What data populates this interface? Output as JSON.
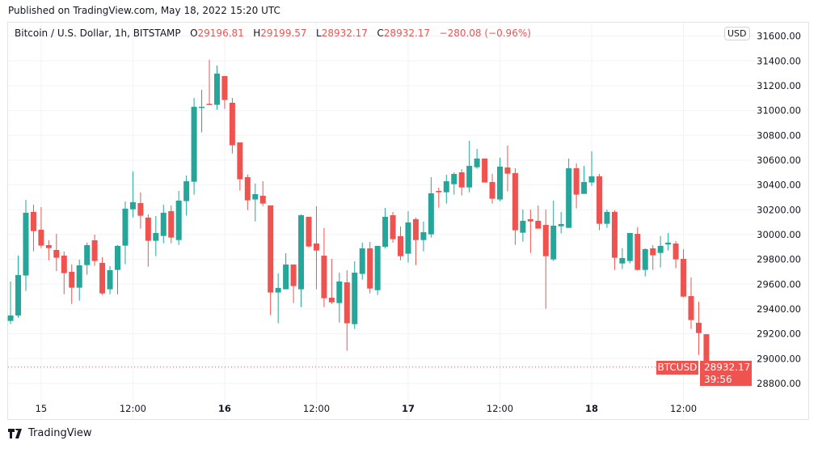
{
  "published": "Published on TradingView.com, May 18, 2022 15:20 UTC",
  "legend": {
    "symbol": "Bitcoin / U.S. Dollar, 1h, BITSTAMP",
    "o_label": "O",
    "o": "29196.81",
    "h_label": "H",
    "h": "29199.57",
    "l_label": "L",
    "l": "28932.17",
    "c_label": "C",
    "c": "28932.17",
    "change": "−280.08 (−0.96%)"
  },
  "currency_button": "USD",
  "last_price": {
    "symbol": "BTCUSD",
    "price": "28932.17",
    "countdown": "39:56"
  },
  "logo_text": "TradingView",
  "colors": {
    "up": "#26a69a",
    "down": "#ef5350",
    "grid": "#f0f3fa"
  },
  "chart_data": {
    "type": "candlestick",
    "interval": "1h",
    "ylim": [
      28700,
      31700
    ],
    "grid": true,
    "y_ticks": [
      "28800.00",
      "29000.00",
      "29200.00",
      "29400.00",
      "29600.00",
      "29800.00",
      "30000.00",
      "30200.00",
      "30400.00",
      "30600.00",
      "30800.00",
      "31000.00",
      "31200.00",
      "31400.00",
      "31600.00"
    ],
    "x_ticks": [
      {
        "label": "15",
        "time": "2022-05-15 00:00",
        "bold": false
      },
      {
        "label": "12:00",
        "time": "2022-05-15 12:00",
        "bold": false
      },
      {
        "label": "16",
        "time": "2022-05-16 00:00",
        "bold": true
      },
      {
        "label": "12:00",
        "time": "2022-05-16 12:00",
        "bold": false
      },
      {
        "label": "17",
        "time": "2022-05-17 00:00",
        "bold": true
      },
      {
        "label": "12:00",
        "time": "2022-05-17 12:00",
        "bold": false
      },
      {
        "label": "18",
        "time": "2022-05-18 00:00",
        "bold": true
      },
      {
        "label": "12:00",
        "time": "2022-05-18 12:00",
        "bold": false
      }
    ],
    "columns": [
      "time",
      "open",
      "high",
      "low",
      "close"
    ],
    "candles": [
      [
        "2022-05-14 20:00",
        29304,
        29622,
        29278,
        29348
      ],
      [
        "2022-05-14 21:00",
        29348,
        29830,
        29330,
        29674
      ],
      [
        "2022-05-14 22:00",
        29670,
        30280,
        29546,
        30176
      ],
      [
        "2022-05-14 23:00",
        30183,
        30241,
        29865,
        30028
      ],
      [
        "2022-05-15 00:00",
        30039,
        30222,
        29891,
        29911
      ],
      [
        "2022-05-15 01:00",
        29915,
        29954,
        29793,
        29891
      ],
      [
        "2022-05-15 02:00",
        29876,
        30006,
        29706,
        29813
      ],
      [
        "2022-05-15 03:00",
        29830,
        29863,
        29519,
        29689
      ],
      [
        "2022-05-15 04:00",
        29700,
        29759,
        29441,
        29572
      ],
      [
        "2022-05-15 05:00",
        29572,
        29798,
        29467,
        29752
      ],
      [
        "2022-05-15 06:00",
        29754,
        29935,
        29676,
        29915
      ],
      [
        "2022-05-15 07:00",
        29954,
        30000,
        29748,
        29787
      ],
      [
        "2022-05-15 08:00",
        29772,
        29817,
        29513,
        29526
      ],
      [
        "2022-05-15 09:00",
        29559,
        29746,
        29519,
        29713
      ],
      [
        "2022-05-15 10:00",
        29715,
        29915,
        29519,
        29909
      ],
      [
        "2022-05-15 11:00",
        29911,
        30267,
        29761,
        30209
      ],
      [
        "2022-05-15 12:00",
        30204,
        30509,
        30139,
        30261
      ],
      [
        "2022-05-15 13:00",
        30254,
        30339,
        30048,
        30152
      ],
      [
        "2022-05-15 14:00",
        30137,
        30163,
        29741,
        29950
      ],
      [
        "2022-05-15 15:00",
        29950,
        30150,
        29826,
        30013
      ],
      [
        "2022-05-15 16:00",
        29989,
        30241,
        29930,
        30176
      ],
      [
        "2022-05-15 17:00",
        30189,
        30235,
        29930,
        29976
      ],
      [
        "2022-05-15 18:00",
        29956,
        30352,
        29917,
        30274
      ],
      [
        "2022-05-15 19:00",
        30270,
        30476,
        30152,
        30430
      ],
      [
        "2022-05-15 20:00",
        30426,
        31102,
        30322,
        31030
      ],
      [
        "2022-05-15 21:00",
        31022,
        31167,
        30824,
        31030
      ],
      [
        "2022-05-15 22:00",
        31054,
        31409,
        31046,
        31046
      ],
      [
        "2022-05-15 23:00",
        31046,
        31363,
        31007,
        31298
      ],
      [
        "2022-05-16 00:00",
        31278,
        31278,
        31013,
        31085
      ],
      [
        "2022-05-16 01:00",
        31063,
        31102,
        30654,
        30720
      ],
      [
        "2022-05-16 02:00",
        30743,
        30743,
        30354,
        30446
      ],
      [
        "2022-05-16 03:00",
        30463,
        30485,
        30198,
        30276
      ],
      [
        "2022-05-16 04:00",
        30283,
        30411,
        30106,
        30326
      ],
      [
        "2022-05-16 05:00",
        30313,
        30430,
        30230,
        30250
      ],
      [
        "2022-05-16 06:00",
        30235,
        30235,
        29350,
        29533
      ],
      [
        "2022-05-16 07:00",
        29533,
        29687,
        29285,
        29570
      ],
      [
        "2022-05-16 08:00",
        29559,
        29850,
        29559,
        29759
      ],
      [
        "2022-05-16 09:00",
        29759,
        29759,
        29448,
        29585
      ],
      [
        "2022-05-16 10:00",
        29559,
        30163,
        29415,
        30156
      ],
      [
        "2022-05-16 11:00",
        30143,
        30143,
        29898,
        29904
      ],
      [
        "2022-05-16 12:00",
        29928,
        30228,
        29559,
        29872
      ],
      [
        "2022-05-16 13:00",
        29830,
        30052,
        29415,
        29487
      ],
      [
        "2022-05-16 14:00",
        29491,
        29804,
        29441,
        29454
      ],
      [
        "2022-05-16 15:00",
        29448,
        29693,
        29291,
        29622
      ],
      [
        "2022-05-16 16:00",
        29615,
        29713,
        29063,
        29285
      ],
      [
        "2022-05-16 17:00",
        29278,
        29785,
        29239,
        29693
      ],
      [
        "2022-05-16 18:00",
        29683,
        29935,
        29637,
        29889
      ],
      [
        "2022-05-16 19:00",
        29889,
        29941,
        29526,
        29565
      ],
      [
        "2022-05-16 20:00",
        29552,
        29909,
        29513,
        29909
      ],
      [
        "2022-05-16 21:00",
        29902,
        30215,
        29889,
        30143
      ],
      [
        "2022-05-16 22:00",
        30156,
        30183,
        29935,
        29963
      ],
      [
        "2022-05-16 23:00",
        29987,
        30065,
        29793,
        29826
      ],
      [
        "2022-05-17 00:00",
        29846,
        30189,
        29774,
        30098
      ],
      [
        "2022-05-17 01:00",
        30124,
        30137,
        29754,
        29956
      ],
      [
        "2022-05-17 02:00",
        29956,
        30104,
        29865,
        30019
      ],
      [
        "2022-05-17 03:00",
        30002,
        30463,
        29976,
        30333
      ],
      [
        "2022-05-17 04:00",
        30352,
        30378,
        30217,
        30341
      ],
      [
        "2022-05-17 05:00",
        30341,
        30483,
        30250,
        30430
      ],
      [
        "2022-05-17 06:00",
        30406,
        30502,
        30322,
        30489
      ],
      [
        "2022-05-17 07:00",
        30502,
        30528,
        30315,
        30380
      ],
      [
        "2022-05-17 08:00",
        30380,
        30756,
        30341,
        30554
      ],
      [
        "2022-05-17 09:00",
        30543,
        30691,
        30530,
        30613
      ],
      [
        "2022-05-17 10:00",
        30613,
        30613,
        30420,
        30420
      ],
      [
        "2022-05-17 11:00",
        30424,
        30489,
        30250,
        30289
      ],
      [
        "2022-05-17 12:00",
        30283,
        30620,
        30270,
        30548
      ],
      [
        "2022-05-17 13:00",
        30541,
        30717,
        30348,
        30491
      ],
      [
        "2022-05-17 14:00",
        30496,
        30535,
        29917,
        30035
      ],
      [
        "2022-05-17 15:00",
        30015,
        30202,
        29943,
        30111
      ],
      [
        "2022-05-17 16:00",
        30124,
        30202,
        29852,
        30106
      ],
      [
        "2022-05-17 17:00",
        30111,
        30235,
        30048,
        30048
      ],
      [
        "2022-05-17 18:00",
        30078,
        30202,
        29402,
        29826
      ],
      [
        "2022-05-17 19:00",
        29800,
        30274,
        29787,
        30072
      ],
      [
        "2022-05-17 20:00",
        30067,
        30183,
        30009,
        30085
      ],
      [
        "2022-05-17 21:00",
        30054,
        30613,
        30054,
        30535
      ],
      [
        "2022-05-17 22:00",
        30535,
        30574,
        30211,
        30322
      ],
      [
        "2022-05-17 23:00",
        30328,
        30554,
        30328,
        30424
      ],
      [
        "2022-05-18 00:00",
        30420,
        30672,
        30393,
        30470
      ],
      [
        "2022-05-18 01:00",
        30470,
        30489,
        30035,
        30087
      ],
      [
        "2022-05-18 02:00",
        30087,
        30202,
        30054,
        30183
      ],
      [
        "2022-05-18 03:00",
        30183,
        30196,
        29715,
        29813
      ],
      [
        "2022-05-18 04:00",
        29767,
        29889,
        29722,
        29811
      ],
      [
        "2022-05-18 05:00",
        29787,
        30013,
        29767,
        30013
      ],
      [
        "2022-05-18 06:00",
        30006,
        30059,
        29709,
        29715
      ],
      [
        "2022-05-18 07:00",
        29715,
        29889,
        29663,
        29883
      ],
      [
        "2022-05-18 08:00",
        29889,
        29915,
        29715,
        29833
      ],
      [
        "2022-05-18 09:00",
        29852,
        29987,
        29735,
        29909
      ],
      [
        "2022-05-18 10:00",
        29920,
        30013,
        29872,
        29935
      ],
      [
        "2022-05-18 11:00",
        29928,
        29948,
        29728,
        29800
      ],
      [
        "2022-05-18 12:00",
        29804,
        29883,
        29494,
        29500
      ],
      [
        "2022-05-18 13:00",
        29504,
        29654,
        29239,
        29311
      ],
      [
        "2022-05-18 14:00",
        29289,
        29459,
        29030,
        29206
      ],
      [
        "2022-05-18 15:00",
        29196.81,
        29199.57,
        28932.17,
        28932.17
      ]
    ]
  }
}
